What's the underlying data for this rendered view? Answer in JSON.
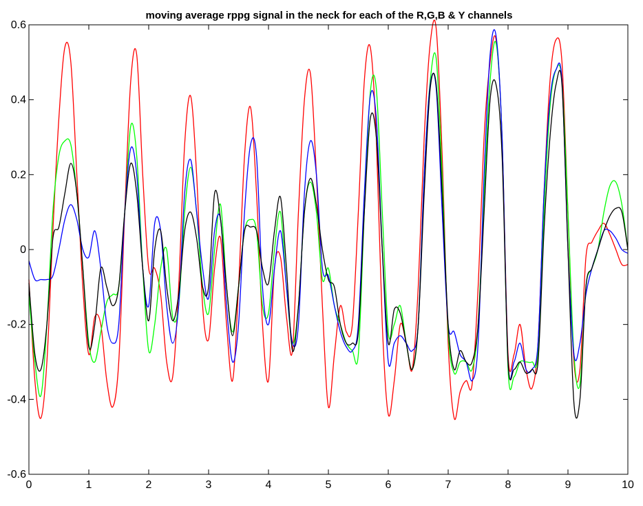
{
  "chart_data": {
    "type": "line",
    "title": "moving average rppg signal in the neck for each of the R,G,B & Y channels",
    "xlabel": "",
    "ylabel": "",
    "xlim": [
      0,
      10
    ],
    "ylim": [
      -0.6,
      0.6
    ],
    "x_ticks": [
      "0",
      "1",
      "2",
      "3",
      "4",
      "5",
      "6",
      "7",
      "8",
      "9",
      "10"
    ],
    "y_ticks": [
      "-0.6",
      "-0.4",
      "-0.2",
      "0",
      "0.2",
      "0.4",
      "0.6"
    ],
    "grid": false,
    "legend": "none",
    "x": [
      0,
      0.1,
      0.2,
      0.3,
      0.4,
      0.5,
      0.6,
      0.7,
      0.8,
      0.9,
      1.0,
      1.1,
      1.2,
      1.3,
      1.4,
      1.5,
      1.6,
      1.7,
      1.8,
      1.9,
      2.0,
      2.1,
      2.2,
      2.3,
      2.4,
      2.5,
      2.6,
      2.7,
      2.8,
      2.9,
      3.0,
      3.1,
      3.2,
      3.3,
      3.4,
      3.5,
      3.6,
      3.7,
      3.8,
      3.9,
      4.0,
      4.1,
      4.2,
      4.3,
      4.4,
      4.5,
      4.6,
      4.7,
      4.8,
      4.9,
      5.0,
      5.1,
      5.2,
      5.3,
      5.4,
      5.5,
      5.6,
      5.7,
      5.8,
      5.9,
      6.0,
      6.1,
      6.2,
      6.3,
      6.4,
      6.5,
      6.6,
      6.7,
      6.8,
      6.9,
      7.0,
      7.1,
      7.2,
      7.3,
      7.4,
      7.5,
      7.6,
      7.7,
      7.8,
      7.9,
      8.0,
      8.1,
      8.2,
      8.3,
      8.4,
      8.5,
      8.6,
      8.7,
      8.8,
      8.9,
      9.0,
      9.1,
      9.2,
      9.3,
      9.4,
      9.5,
      9.6,
      9.7,
      9.8,
      9.9,
      10.0
    ],
    "series": [
      {
        "color": "#ff0000",
        "values": [
          -0.08,
          -0.35,
          -0.45,
          -0.3,
          0.05,
          0.35,
          0.54,
          0.5,
          0.2,
          -0.1,
          -0.28,
          -0.18,
          -0.2,
          -0.35,
          -0.42,
          -0.3,
          0.1,
          0.45,
          0.52,
          0.2,
          -0.05,
          -0.05,
          -0.12,
          -0.3,
          -0.34,
          -0.1,
          0.28,
          0.41,
          0.2,
          -0.15,
          -0.24,
          -0.05,
          0.03,
          -0.2,
          -0.35,
          -0.1,
          0.25,
          0.38,
          0.15,
          -0.2,
          -0.35,
          -0.05,
          -0.02,
          -0.18,
          -0.27,
          0.1,
          0.4,
          0.47,
          0.2,
          -0.15,
          -0.42,
          -0.28,
          -0.15,
          -0.22,
          -0.2,
          0.1,
          0.45,
          0.54,
          0.3,
          -0.2,
          -0.44,
          -0.35,
          -0.2,
          -0.25,
          -0.32,
          -0.1,
          0.3,
          0.55,
          0.59,
          0.25,
          -0.25,
          -0.45,
          -0.38,
          -0.35,
          -0.36,
          -0.1,
          0.3,
          0.5,
          0.56,
          0.3,
          -0.28,
          -0.28,
          -0.2,
          -0.32,
          -0.37,
          -0.25,
          0.15,
          0.45,
          0.56,
          0.5,
          0.1,
          -0.3,
          -0.32,
          -0.02,
          0.02,
          0.05,
          0.07,
          0.04,
          0.0,
          -0.04,
          -0.04
        ]
      },
      {
        "color": "#00ff00",
        "values": [
          -0.12,
          -0.3,
          -0.39,
          -0.2,
          0.1,
          0.25,
          0.29,
          0.28,
          0.15,
          -0.05,
          -0.25,
          -0.3,
          -0.22,
          -0.14,
          -0.12,
          -0.1,
          0.1,
          0.33,
          0.25,
          -0.05,
          -0.27,
          -0.2,
          -0.05,
          0.0,
          -0.18,
          -0.15,
          0.1,
          0.22,
          0.1,
          -0.1,
          -0.17,
          0.0,
          0.12,
          -0.1,
          -0.22,
          -0.1,
          0.05,
          0.08,
          0.05,
          -0.15,
          -0.17,
          0.0,
          0.1,
          -0.1,
          -0.25,
          -0.15,
          0.1,
          0.18,
          0.1,
          -0.08,
          -0.05,
          -0.15,
          -0.2,
          -0.25,
          -0.27,
          -0.28,
          0.1,
          0.42,
          0.43,
          0.1,
          -0.22,
          -0.2,
          -0.15,
          -0.25,
          -0.32,
          -0.2,
          0.2,
          0.45,
          0.51,
          0.2,
          -0.22,
          -0.33,
          -0.3,
          -0.3,
          -0.32,
          -0.2,
          0.15,
          0.45,
          0.55,
          0.3,
          -0.32,
          -0.34,
          -0.3,
          -0.3,
          -0.3,
          -0.28,
          0.1,
          0.38,
          0.48,
          0.45,
          0.1,
          -0.28,
          -0.36,
          -0.1,
          -0.05,
          0.0,
          0.1,
          0.17,
          0.18,
          0.12,
          0.0
        ]
      },
      {
        "color": "#0000ff",
        "values": [
          -0.03,
          -0.08,
          -0.08,
          -0.08,
          -0.07,
          0.0,
          0.08,
          0.12,
          0.08,
          0.0,
          -0.02,
          0.05,
          -0.05,
          -0.2,
          -0.25,
          -0.2,
          0.1,
          0.27,
          0.2,
          -0.05,
          -0.15,
          0.07,
          0.05,
          -0.15,
          -0.25,
          -0.15,
          0.15,
          0.24,
          0.1,
          -0.05,
          -0.13,
          0.05,
          0.08,
          -0.15,
          -0.3,
          -0.2,
          0.1,
          0.28,
          0.25,
          -0.1,
          -0.2,
          -0.05,
          0.05,
          -0.1,
          -0.25,
          -0.2,
          0.15,
          0.29,
          0.2,
          -0.05,
          -0.07,
          -0.15,
          -0.22,
          -0.26,
          -0.27,
          -0.2,
          0.15,
          0.41,
          0.35,
          0.0,
          -0.3,
          -0.25,
          -0.23,
          -0.25,
          -0.27,
          -0.2,
          0.2,
          0.44,
          0.43,
          0.1,
          -0.2,
          -0.22,
          -0.28,
          -0.3,
          -0.35,
          -0.25,
          0.2,
          0.52,
          0.57,
          0.3,
          -0.3,
          -0.3,
          -0.25,
          -0.32,
          -0.32,
          -0.25,
          0.15,
          0.4,
          0.48,
          0.45,
          0.0,
          -0.28,
          -0.25,
          -0.12,
          -0.05,
          0.0,
          0.05,
          0.05,
          0.03,
          0.0,
          -0.01
        ]
      },
      {
        "color": "#000000",
        "values": [
          -0.09,
          -0.28,
          -0.32,
          -0.2,
          0.03,
          0.06,
          0.15,
          0.23,
          0.15,
          -0.05,
          -0.26,
          -0.2,
          -0.05,
          -0.1,
          -0.15,
          -0.1,
          0.1,
          0.23,
          0.15,
          -0.05,
          -0.19,
          0.0,
          0.05,
          -0.1,
          -0.19,
          -0.12,
          0.05,
          0.1,
          0.03,
          -0.1,
          -0.1,
          0.15,
          0.08,
          -0.1,
          -0.23,
          -0.1,
          0.05,
          0.06,
          0.05,
          -0.05,
          -0.09,
          0.05,
          0.14,
          -0.05,
          -0.27,
          -0.15,
          0.1,
          0.19,
          0.12,
          0.0,
          -0.08,
          -0.1,
          -0.2,
          -0.25,
          -0.25,
          -0.22,
          0.1,
          0.35,
          0.3,
          0.0,
          -0.25,
          -0.16,
          -0.17,
          -0.25,
          -0.32,
          -0.2,
          0.15,
          0.43,
          0.44,
          0.15,
          -0.2,
          -0.32,
          -0.27,
          -0.3,
          -0.3,
          -0.2,
          0.1,
          0.4,
          0.44,
          0.25,
          -0.3,
          -0.32,
          -0.3,
          -0.33,
          -0.32,
          -0.3,
          0.05,
          0.3,
          0.44,
          0.44,
          0.0,
          -0.41,
          -0.4,
          -0.1,
          -0.05,
          0.0,
          0.05,
          0.09,
          0.11,
          0.1,
          0.0
        ]
      }
    ]
  }
}
